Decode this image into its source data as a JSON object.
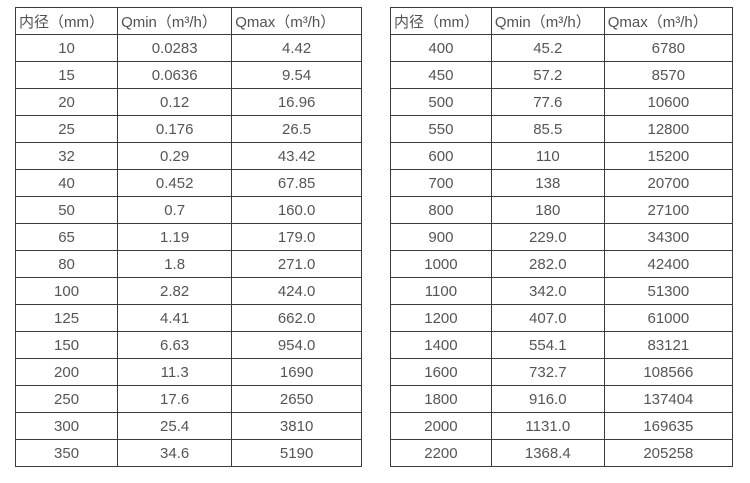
{
  "columns": [
    "内径（mm）",
    "Qmin（m³/h）",
    "Qmax（m³/h）"
  ],
  "tables": [
    {
      "name": "small-diameters",
      "rows": [
        [
          "10",
          "0.0283",
          "4.42"
        ],
        [
          "15",
          "0.0636",
          "9.54"
        ],
        [
          "20",
          "0.12",
          "16.96"
        ],
        [
          "25",
          "0.176",
          "26.5"
        ],
        [
          "32",
          "0.29",
          "43.42"
        ],
        [
          "40",
          "0.452",
          "67.85"
        ],
        [
          "50",
          "0.7",
          "160.0"
        ],
        [
          "65",
          "1.19",
          "179.0"
        ],
        [
          "80",
          "1.8",
          "271.0"
        ],
        [
          "100",
          "2.82",
          "424.0"
        ],
        [
          "125",
          "4.41",
          "662.0"
        ],
        [
          "150",
          "6.63",
          "954.0"
        ],
        [
          "200",
          "11.3",
          "1690"
        ],
        [
          "250",
          "17.6",
          "2650"
        ],
        [
          "300",
          "25.4",
          "3810"
        ],
        [
          "350",
          "34.6",
          "5190"
        ]
      ]
    },
    {
      "name": "large-diameters",
      "rows": [
        [
          "400",
          "45.2",
          "6780"
        ],
        [
          "450",
          "57.2",
          "8570"
        ],
        [
          "500",
          "77.6",
          "10600"
        ],
        [
          "550",
          "85.5",
          "12800"
        ],
        [
          "600",
          "110",
          "15200"
        ],
        [
          "700",
          "138",
          "20700"
        ],
        [
          "800",
          "180",
          "27100"
        ],
        [
          "900",
          "229.0",
          "34300"
        ],
        [
          "1000",
          "282.0",
          "42400"
        ],
        [
          "1100",
          "342.0",
          "51300"
        ],
        [
          "1200",
          "407.0",
          "61000"
        ],
        [
          "1400",
          "554.1",
          "83121"
        ],
        [
          "1600",
          "732.7",
          "108566"
        ],
        [
          "1800",
          "916.0",
          "137404"
        ],
        [
          "2000",
          "1131.0",
          "169635"
        ],
        [
          "2200",
          "1368.4",
          "205258"
        ]
      ]
    }
  ],
  "colors": {
    "text": "#555555",
    "border": "#3b3b3b",
    "background": "#ffffff"
  }
}
